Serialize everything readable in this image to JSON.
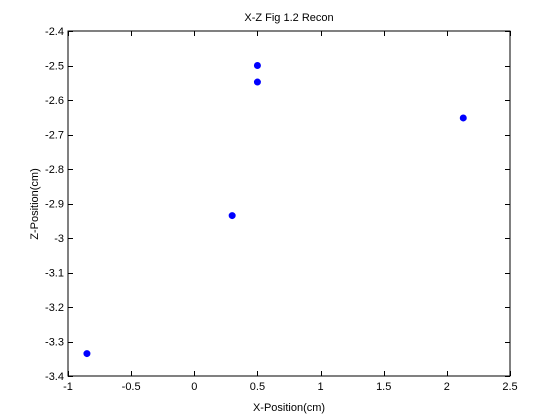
{
  "chart_data": {
    "type": "scatter",
    "title": "X-Z Fig 1.2 Recon",
    "xlabel": "X-Position(cm)",
    "ylabel": "Z-Position(cm)",
    "xlim": [
      -1,
      2.5
    ],
    "ylim": [
      -3.4,
      -2.4
    ],
    "x_ticks": [
      -1,
      -0.5,
      0,
      0.5,
      1,
      1.5,
      2,
      2.5
    ],
    "x_tick_labels": [
      "-1",
      "-0.5",
      "0",
      "0.5",
      "1",
      "1.5",
      "2",
      "2.5"
    ],
    "y_ticks": [
      -3.4,
      -3.3,
      -3.2,
      -3.1,
      -3.0,
      -2.9,
      -2.8,
      -2.7,
      -2.6,
      -2.5,
      -2.4
    ],
    "y_tick_labels": [
      "-3.4",
      "-3.3",
      "-3.2",
      "-3.1",
      "-3",
      "-2.9",
      "-2.8",
      "-2.7",
      "-2.6",
      "-2.5",
      "-2.4"
    ],
    "grid": false,
    "series": [
      {
        "color": "#0000ff",
        "points": [
          {
            "x": -0.85,
            "y": -3.335
          },
          {
            "x": 0.3,
            "y": -2.935
          },
          {
            "x": 0.5,
            "y": -2.5
          },
          {
            "x": 0.5,
            "y": -2.548
          },
          {
            "x": 2.13,
            "y": -2.652
          }
        ]
      }
    ]
  }
}
